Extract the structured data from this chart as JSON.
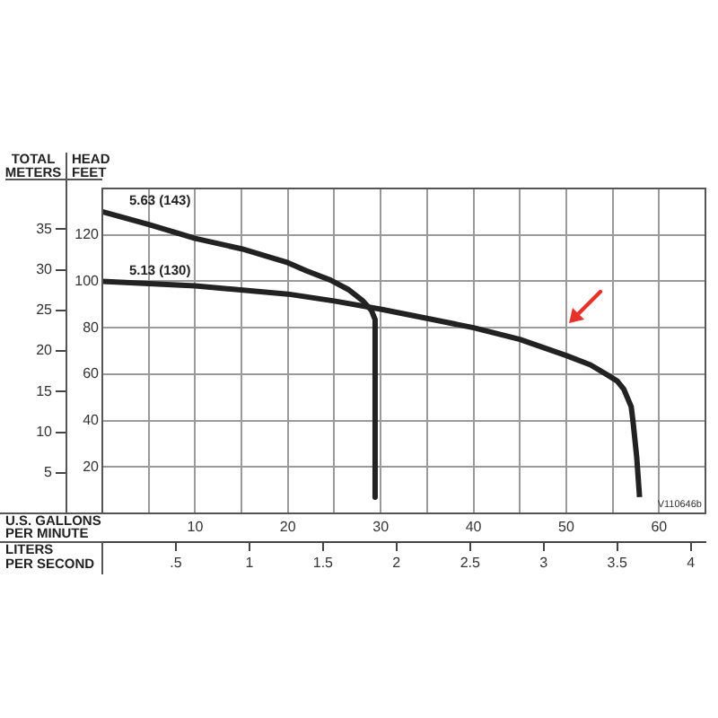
{
  "chart_data": {
    "type": "line",
    "xlabel": "U.S. GALLONS PER MINUTE",
    "x2label": "LITERS PER SECOND",
    "ylabel": "HEAD FEET",
    "y2label": "TOTAL METERS",
    "xlim": [
      0,
      65
    ],
    "xticks": [
      {
        "value": 5,
        "label": null
      },
      10,
      {
        "value": 15,
        "label": null
      },
      20,
      {
        "value": 25,
        "label": null
      },
      30,
      {
        "value": 35,
        "label": null
      },
      40,
      {
        "value": 45,
        "label": null
      },
      50,
      {
        "value": 55,
        "label": null
      },
      60
    ],
    "x2lim": [
      0,
      4.1
    ],
    "x2ticks": [
      {
        "value": 0.5,
        "label": ".5"
      },
      1,
      1.5,
      2,
      2.5,
      3,
      3.5,
      4
    ],
    "ylim": [
      0,
      140
    ],
    "yticks": [
      20,
      40,
      60,
      80,
      100,
      120
    ],
    "y2lim": [
      0,
      40
    ],
    "y2ticks": [
      5,
      10,
      15,
      20,
      25,
      30,
      35
    ],
    "series": [
      {
        "color": "#222222",
        "x": [
          0,
          5,
          10,
          15,
          20,
          22,
          24.6,
          26.5,
          28.1,
          29,
          29.4,
          29.4
        ],
        "values": [
          130,
          124.5,
          118.5,
          114,
          108,
          104.5,
          100.5,
          96.5,
          91.5,
          87.5,
          83.5,
          7
        ]
      },
      {
        "color": "#222222",
        "x": [
          0,
          10,
          20,
          25,
          30,
          35,
          40,
          45,
          50,
          52.6,
          54.5,
          55.5,
          56.2,
          57,
          57.2,
          57.6,
          57.9
        ],
        "values": [
          100,
          98,
          94.5,
          91.5,
          88,
          84,
          80,
          75,
          68,
          64,
          59.5,
          57,
          53.5,
          46,
          39.5,
          24,
          7
        ]
      }
    ],
    "annotations": [
      "5.63 (143)",
      "5.13 (130)",
      "V110646b"
    ],
    "grid": true,
    "legend": false,
    "marker": "none",
    "line_style": "solid"
  }
}
